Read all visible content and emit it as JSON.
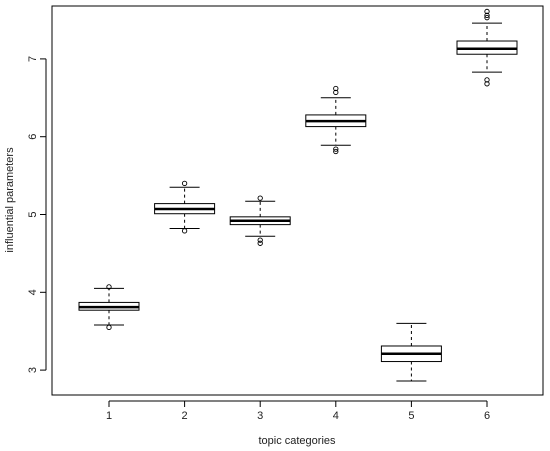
{
  "chart_data": {
    "type": "box",
    "title": "",
    "xlabel": "topic categories",
    "ylabel": "influential parameters",
    "categories": [
      "1",
      "2",
      "3",
      "4",
      "5",
      "6"
    ],
    "ylim": [
      2.68,
      7.68
    ],
    "yticks": [
      3,
      4,
      5,
      6,
      7
    ],
    "grid": false,
    "boxes": [
      {
        "category": "1",
        "whisker_low": 3.58,
        "q1": 3.77,
        "median": 3.81,
        "q3": 3.87,
        "whisker_high": 4.05,
        "outliers": [
          3.55,
          4.07
        ]
      },
      {
        "category": "2",
        "whisker_low": 4.82,
        "q1": 5.01,
        "median": 5.07,
        "q3": 5.14,
        "whisker_high": 5.35,
        "outliers": [
          4.79,
          5.4
        ]
      },
      {
        "category": "3",
        "whisker_low": 4.72,
        "q1": 4.87,
        "median": 4.92,
        "q3": 4.97,
        "whisker_high": 5.17,
        "outliers": [
          4.63,
          4.67,
          5.21
        ]
      },
      {
        "category": "4",
        "whisker_low": 5.89,
        "q1": 6.13,
        "median": 6.2,
        "q3": 6.28,
        "whisker_high": 6.5,
        "outliers": [
          5.81,
          5.84,
          6.57,
          6.62
        ]
      },
      {
        "category": "5",
        "whisker_low": 2.86,
        "q1": 3.11,
        "median": 3.21,
        "q3": 3.31,
        "whisker_high": 3.6,
        "outliers": []
      },
      {
        "category": "6",
        "whisker_low": 6.83,
        "q1": 7.06,
        "median": 7.13,
        "q3": 7.23,
        "whisker_high": 7.46,
        "outliers": [
          6.68,
          6.73,
          7.53,
          7.56,
          7.61
        ]
      }
    ]
  }
}
